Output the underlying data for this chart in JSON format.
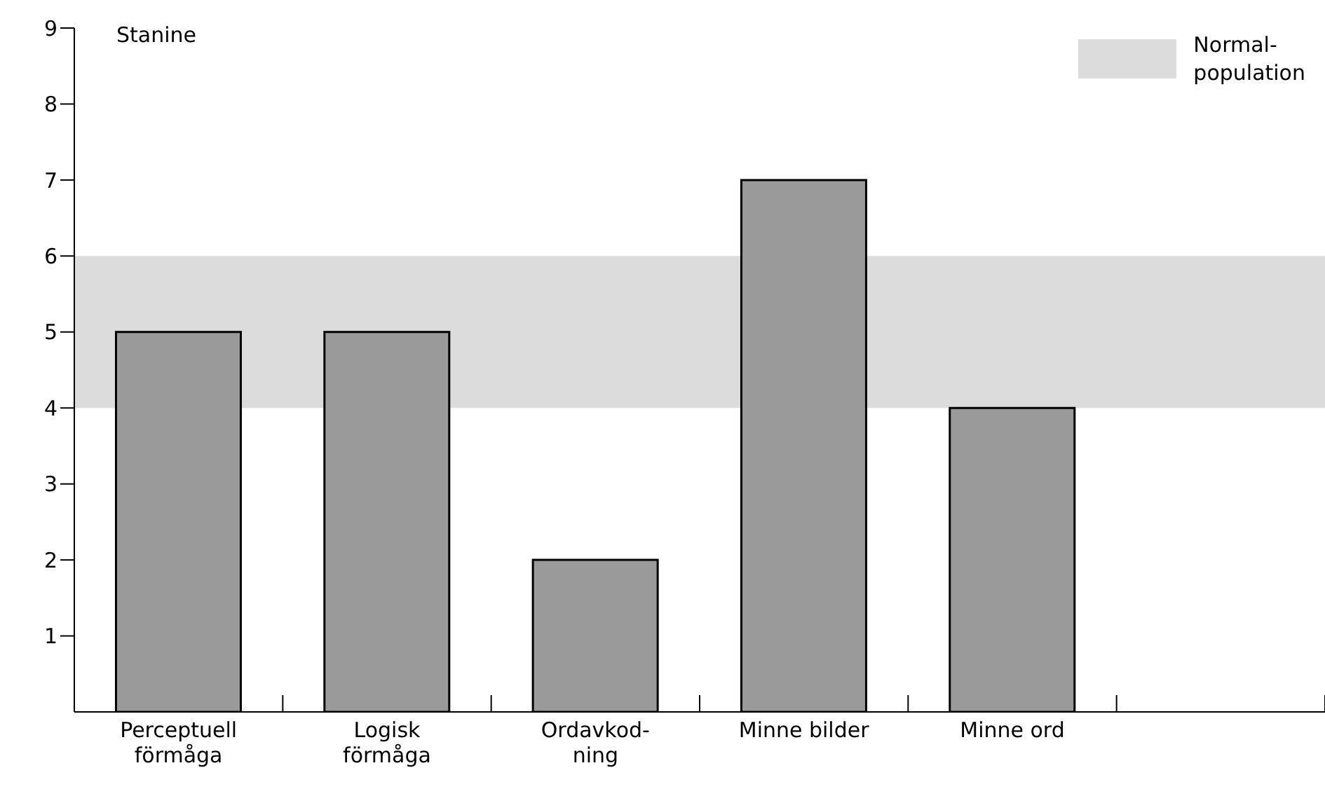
{
  "chart_data": {
    "type": "bar",
    "ylabel": "Stanine",
    "categories": [
      "Perceptuell förmåga",
      "Logisk förmåga",
      "Ordavkod-ning",
      "Minne bilder",
      "Minne ord",
      null
    ],
    "values": [
      5,
      5,
      2,
      7,
      4,
      null
    ],
    "color": "#9a9a9a",
    "ylim": [
      0,
      9
    ],
    "yticks": [
      1,
      2,
      3,
      4,
      5,
      6,
      7,
      8,
      9
    ],
    "bands": [
      {
        "axis": "y",
        "from": 4,
        "to": 6,
        "label": "Normal-population",
        "color": "#dcdcdc"
      }
    ],
    "legend": "top right",
    "grid": false
  }
}
